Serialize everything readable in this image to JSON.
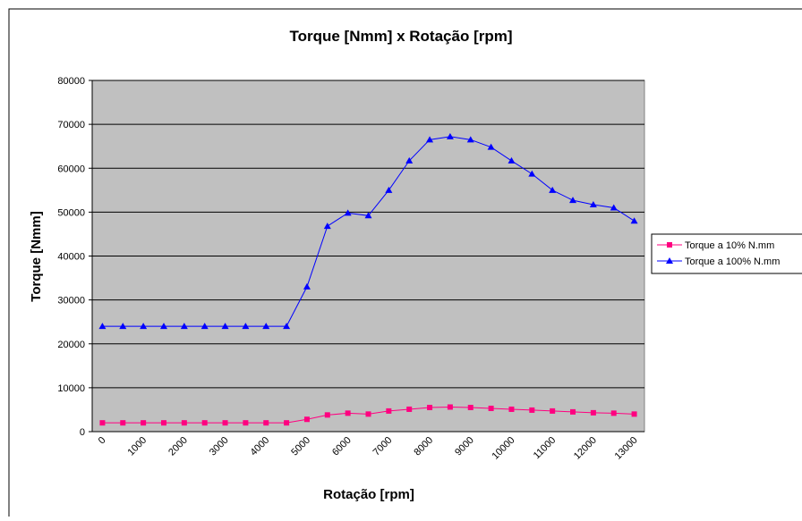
{
  "chart_data": {
    "type": "line",
    "title": "Torque [Nmm] x Rotação [rpm]",
    "x_label": "Rotação [rpm]",
    "y_label": "Torque [Nmm]",
    "categories": [
      "0",
      null,
      "1000",
      null,
      "2000",
      null,
      "3000",
      null,
      "4000",
      null,
      "5000",
      null,
      "6000",
      null,
      "7000",
      null,
      "8000",
      null,
      "9000",
      null,
      "10000",
      null,
      "11000",
      null,
      "12000",
      null,
      "13000"
    ],
    "series": [
      {
        "name": "Torque a 10% N.mm",
        "color": "#ff0080",
        "marker": "square",
        "values": [
          2000,
          2000,
          2000,
          2000,
          2000,
          2000,
          2000,
          2000,
          2000,
          2000,
          2800,
          3800,
          4200,
          4000,
          4700,
          5100,
          5500,
          5600,
          5500,
          5300,
          5100,
          4900,
          4700,
          4500,
          4300,
          4200,
          4000
        ]
      },
      {
        "name": "Torque a 100% N.mm",
        "color": "#0000ff",
        "marker": "triangle",
        "values": [
          24000,
          24000,
          24000,
          24000,
          24000,
          24000,
          24000,
          24000,
          24000,
          24000,
          33000,
          46800,
          49800,
          49200,
          55000,
          61700,
          66500,
          67200,
          66500,
          64800,
          61700,
          58700,
          55000,
          52700,
          51700,
          51000,
          48000
        ]
      }
    ],
    "ylim": [
      0,
      80000
    ],
    "yticks": [
      0,
      10000,
      20000,
      30000,
      40000,
      50000,
      60000,
      70000,
      80000
    ],
    "grid": true,
    "legend": "right"
  }
}
